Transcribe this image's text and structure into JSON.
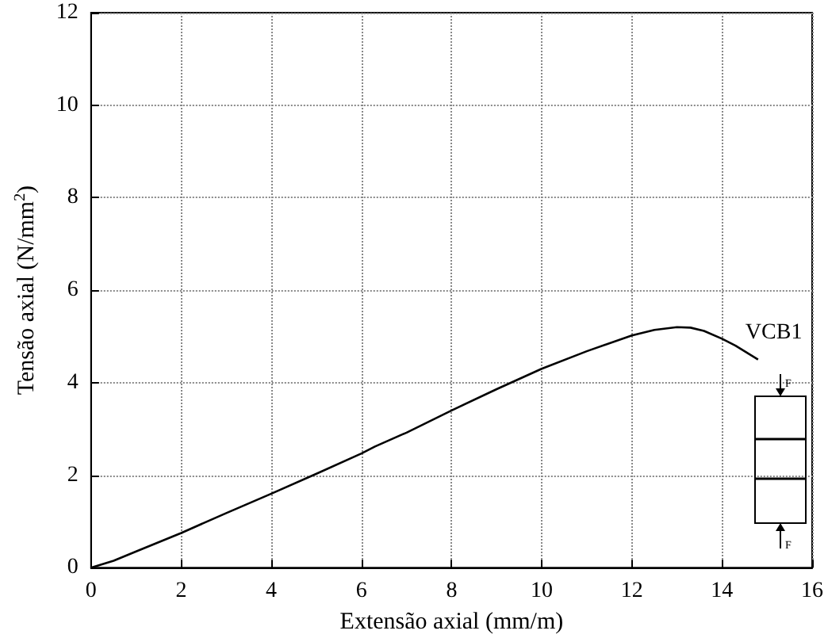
{
  "chart_data": {
    "type": "line",
    "xlabel": "Extensão axial (mm/m)",
    "ylabel": "Tensão axial (N/mm$^{2}$)",
    "x": [
      0,
      0.5,
      1,
      2,
      3,
      4,
      5,
      6,
      6.3,
      7,
      8,
      9,
      10,
      11,
      12,
      12.5,
      13,
      13.3,
      13.6,
      14,
      14.3,
      14.6,
      14.8
    ],
    "series": [
      {
        "color": "#000000",
        "values": [
          0,
          0.15,
          0.35,
          0.75,
          1.18,
          1.6,
          2.03,
          2.47,
          2.62,
          2.92,
          3.4,
          3.86,
          4.3,
          4.68,
          5.02,
          5.14,
          5.2,
          5.19,
          5.12,
          4.95,
          4.8,
          4.62,
          4.5
        ]
      }
    ],
    "xlim": [
      0,
      16
    ],
    "xticks": [
      0,
      2,
      4,
      6,
      8,
      10,
      12,
      14,
      16
    ],
    "ylim": [
      0,
      12
    ],
    "yticks": [
      0,
      2,
      4,
      6,
      8,
      10,
      12
    ],
    "grid": true,
    "marker": "none",
    "line_style": "solid",
    "annotations": [
      "VCB1",
      "F",
      "F"
    ]
  }
}
